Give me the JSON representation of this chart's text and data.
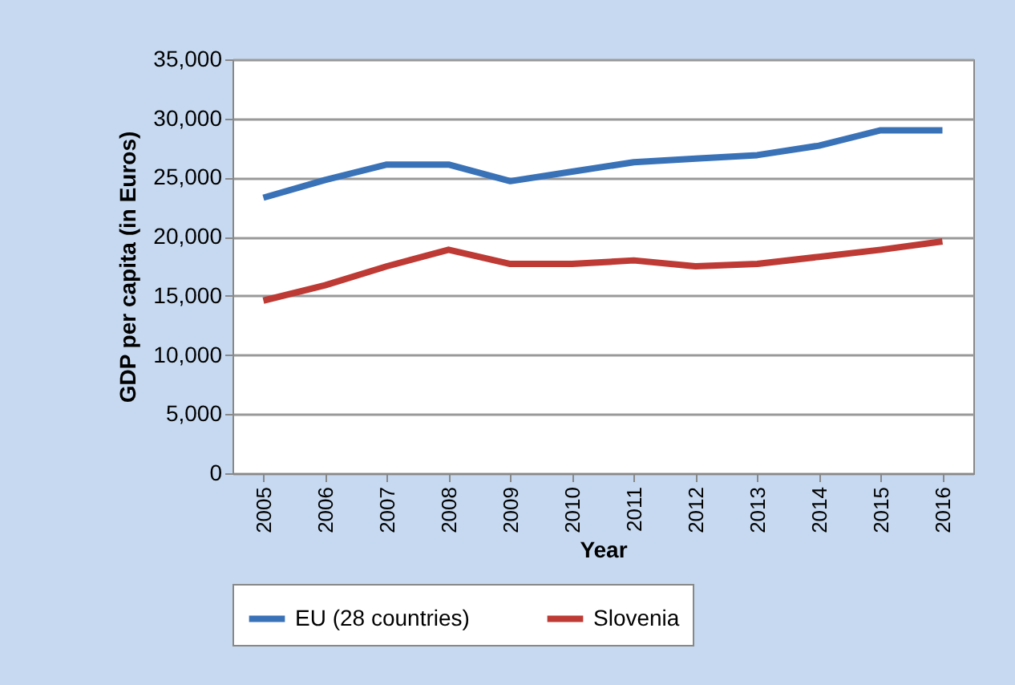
{
  "chart_data": {
    "type": "line",
    "xlabel": "Year",
    "ylabel": "GDP per capita (in Euros)",
    "categories": [
      "2005",
      "2006",
      "2007",
      "2008",
      "2009",
      "2010",
      "2011",
      "2012",
      "2013",
      "2014",
      "2015",
      "2016"
    ],
    "series": [
      {
        "name": "EU (28 countries)",
        "color": "#3a72b8",
        "values": [
          23300,
          24800,
          26100,
          26100,
          24700,
          25500,
          26300,
          26600,
          26900,
          27700,
          29000,
          29000
        ]
      },
      {
        "name": "Slovenia",
        "color": "#be3a34",
        "values": [
          14600,
          15900,
          17500,
          18900,
          17700,
          17700,
          18000,
          17500,
          17700,
          18300,
          18900,
          19600
        ]
      }
    ],
    "ylim": [
      0,
      35000
    ],
    "yticks": [
      0,
      {
        "value": 5000,
        "label": "5,000"
      },
      {
        "value": 10000,
        "label": "10,000"
      },
      {
        "value": 15000,
        "label": "15,000"
      },
      {
        "value": 20000,
        "label": "20,000"
      },
      {
        "value": 25000,
        "label": "25,000"
      },
      {
        "value": 30000,
        "label": "30,000"
      },
      {
        "value": 35000,
        "label": "35,000"
      }
    ],
    "grid": "y",
    "legend": "bottom",
    "marker": "none",
    "line_style": "solid"
  }
}
